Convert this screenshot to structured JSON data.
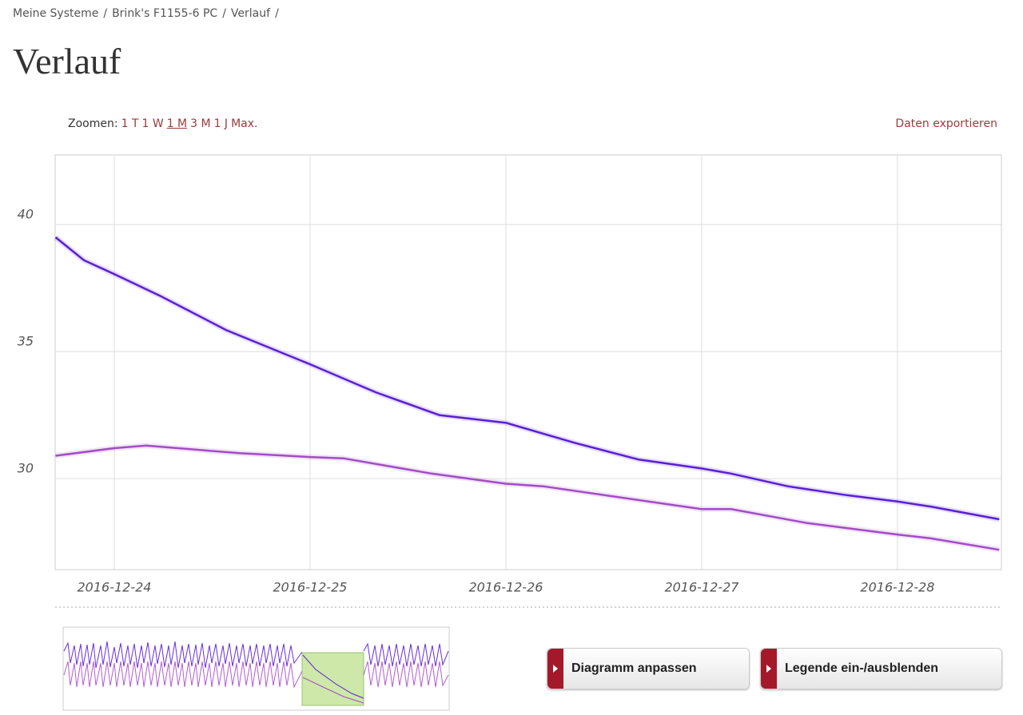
{
  "breadcrumb": [
    "Meine Systeme",
    "Brink's F1155-6 PC",
    "Verlauf"
  ],
  "breadcrumb_separator": "/",
  "title": "Verlauf",
  "zoom": {
    "label": "Zoomen:",
    "options": [
      "1 T",
      "1 W",
      "1 M",
      "3 M",
      "1 J",
      "Max."
    ],
    "selected": "1 M"
  },
  "export_link": "Daten exportieren",
  "chart_data": {
    "type": "line",
    "x": [
      -0.3,
      -0.155,
      0,
      0.163,
      0.233,
      0.571,
      0.64,
      1,
      1.17,
      1.335,
      1.62,
      1.66,
      2,
      2.19,
      2.355,
      2.68,
      3,
      3.15,
      3.44,
      3.54,
      3.74,
      4,
      4.17,
      4.52
    ],
    "xlim": [
      -0.302,
      4.531
    ],
    "xticks": [
      {
        "value": 0,
        "label": "2016-12-24"
      },
      {
        "value": 1,
        "label": "2016-12-25"
      },
      {
        "value": 2,
        "label": "2016-12-26"
      },
      {
        "value": 3,
        "label": "2016-12-27"
      },
      {
        "value": 4,
        "label": "2016-12-28"
      }
    ],
    "ylim": [
      26.42,
      42.74
    ],
    "yticks": [
      30,
      35,
      40
    ],
    "grid": true,
    "series": [
      {
        "color": "#5a1fd4",
        "values": [
          39.5,
          38.6,
          38.05,
          null,
          37.2,
          35.85,
          null,
          34.5,
          null,
          33.4,
          null,
          32.5,
          32.2,
          null,
          31.4,
          30.75,
          30.4,
          30.2,
          29.7,
          null,
          29.35,
          29.1,
          28.9,
          28.4
        ]
      },
      {
        "color": "#a24cc6",
        "values": [
          30.9,
          null,
          31.2,
          31.3,
          null,
          null,
          31.0,
          30.85,
          30.8,
          null,
          30.2,
          null,
          29.8,
          29.7,
          null,
          null,
          28.8,
          28.8,
          null,
          28.25,
          null,
          27.8,
          27.65,
          27.2
        ]
      }
    ]
  },
  "buttons": [
    "Diagramm anpassen",
    "Legende ein-/ausblenden"
  ]
}
